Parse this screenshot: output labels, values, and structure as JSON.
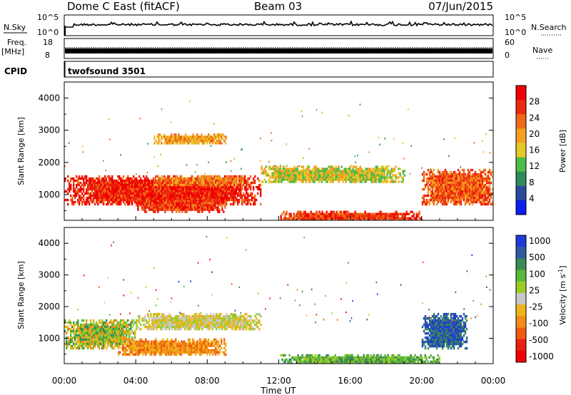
{
  "header": {
    "station": "Dome C East (fitACF)",
    "beam": "Beam 03",
    "date": "07/Jun/2015"
  },
  "status_panels": {
    "nsky_label": "N.Sky",
    "nsky_top_tick": "10^5",
    "nsky_bottom_tick": "10^0",
    "nsearch_label": "N.Search",
    "nsearch_top_tick": "10^5",
    "nsearch_bottom_tick": "10^0",
    "freq_label": "Freq.",
    "freq_unit": "[MHz]",
    "freq_top_tick": "18",
    "freq_bottom_tick": "8",
    "nave_label": "Nave",
    "nave_top_tick": "60",
    "nave_bottom_tick": "0",
    "cpid_label": "CPID",
    "cpid_value": "twofsound 3501"
  },
  "colors": {
    "power_scale": [
      "#0a1ef0",
      "#2a4aa0",
      "#2e8a58",
      "#4cbc48",
      "#e6c828",
      "#f5a020",
      "#ee6a18",
      "#ec2a10",
      "#f00000"
    ],
    "velocity_scale": [
      "#1e3ad8",
      "#2e5a9e",
      "#3a8a58",
      "#58b838",
      "#9ccc28",
      "#c8c8c8",
      "#f0b418",
      "#f08c18",
      "#f05a10",
      "#ec2010",
      "#f00000"
    ]
  },
  "chart_data": [
    {
      "type": "heatmap",
      "name": "power",
      "xlabel": "",
      "ylabel": "Slant Range [km]",
      "ylim": [
        200,
        4500
      ],
      "yticks": [
        "1000",
        "2000",
        "3000",
        "4000"
      ],
      "x_range": [
        "00:00",
        "24:00"
      ],
      "colorbar": {
        "label": "Power [dB]",
        "range": [
          0,
          32
        ],
        "tick_labels": [
          "4",
          "8",
          "12",
          "16",
          "20",
          "24",
          "28"
        ]
      },
      "regions": [
        {
          "t0": "00:00",
          "t1": "11:00",
          "r0": 700,
          "r1": 1600,
          "value": 28
        },
        {
          "t0": "04:00",
          "t1": "09:00",
          "r0": 500,
          "r1": 900,
          "value": 26
        },
        {
          "t0": "05:00",
          "t1": "10:00",
          "r0": 1300,
          "r1": 1600,
          "value": 22
        },
        {
          "t0": "11:00",
          "t1": "19:00",
          "r0": 1400,
          "r1": 1900,
          "value": 16
        },
        {
          "t0": "12:00",
          "t1": "20:00",
          "r0": 200,
          "r1": 500,
          "value": 26
        },
        {
          "t0": "20:00",
          "t1": "24:00",
          "r0": 700,
          "r1": 1800,
          "value": 24
        },
        {
          "t0": "05:00",
          "t1": "09:00",
          "r0": 2600,
          "r1": 2900,
          "value": 20
        }
      ]
    },
    {
      "type": "heatmap",
      "name": "velocity",
      "xlabel": "Time UT",
      "ylabel": "Slant Range [km]",
      "ylim": [
        200,
        4500
      ],
      "yticks": [
        "1000",
        "2000",
        "3000",
        "4000"
      ],
      "xticks": [
        "00:00",
        "04:00",
        "08:00",
        "12:00",
        "16:00",
        "20:00",
        "00:00"
      ],
      "x_range": [
        "00:00",
        "24:00"
      ],
      "colorbar": {
        "label": "Velocity [m s-1]",
        "tick_labels": [
          "1000",
          "500",
          "100",
          "25",
          "-25",
          "-100",
          "-500",
          "-1000"
        ]
      },
      "regions": [
        {
          "t0": "00:00",
          "t1": "04:00",
          "r0": 700,
          "r1": 1600,
          "value": "mixed"
        },
        {
          "t0": "03:00",
          "t1": "09:00",
          "r0": 500,
          "r1": 1000,
          "value": -100
        },
        {
          "t0": "04:00",
          "t1": "11:00",
          "r0": 1300,
          "r1": 1800,
          "value": 0
        },
        {
          "t0": "12:00",
          "t1": "21:00",
          "r0": 200,
          "r1": 500,
          "value": 100
        },
        {
          "t0": "20:00",
          "t1": "22:30",
          "r0": 700,
          "r1": 1800,
          "value": 500
        }
      ]
    }
  ]
}
